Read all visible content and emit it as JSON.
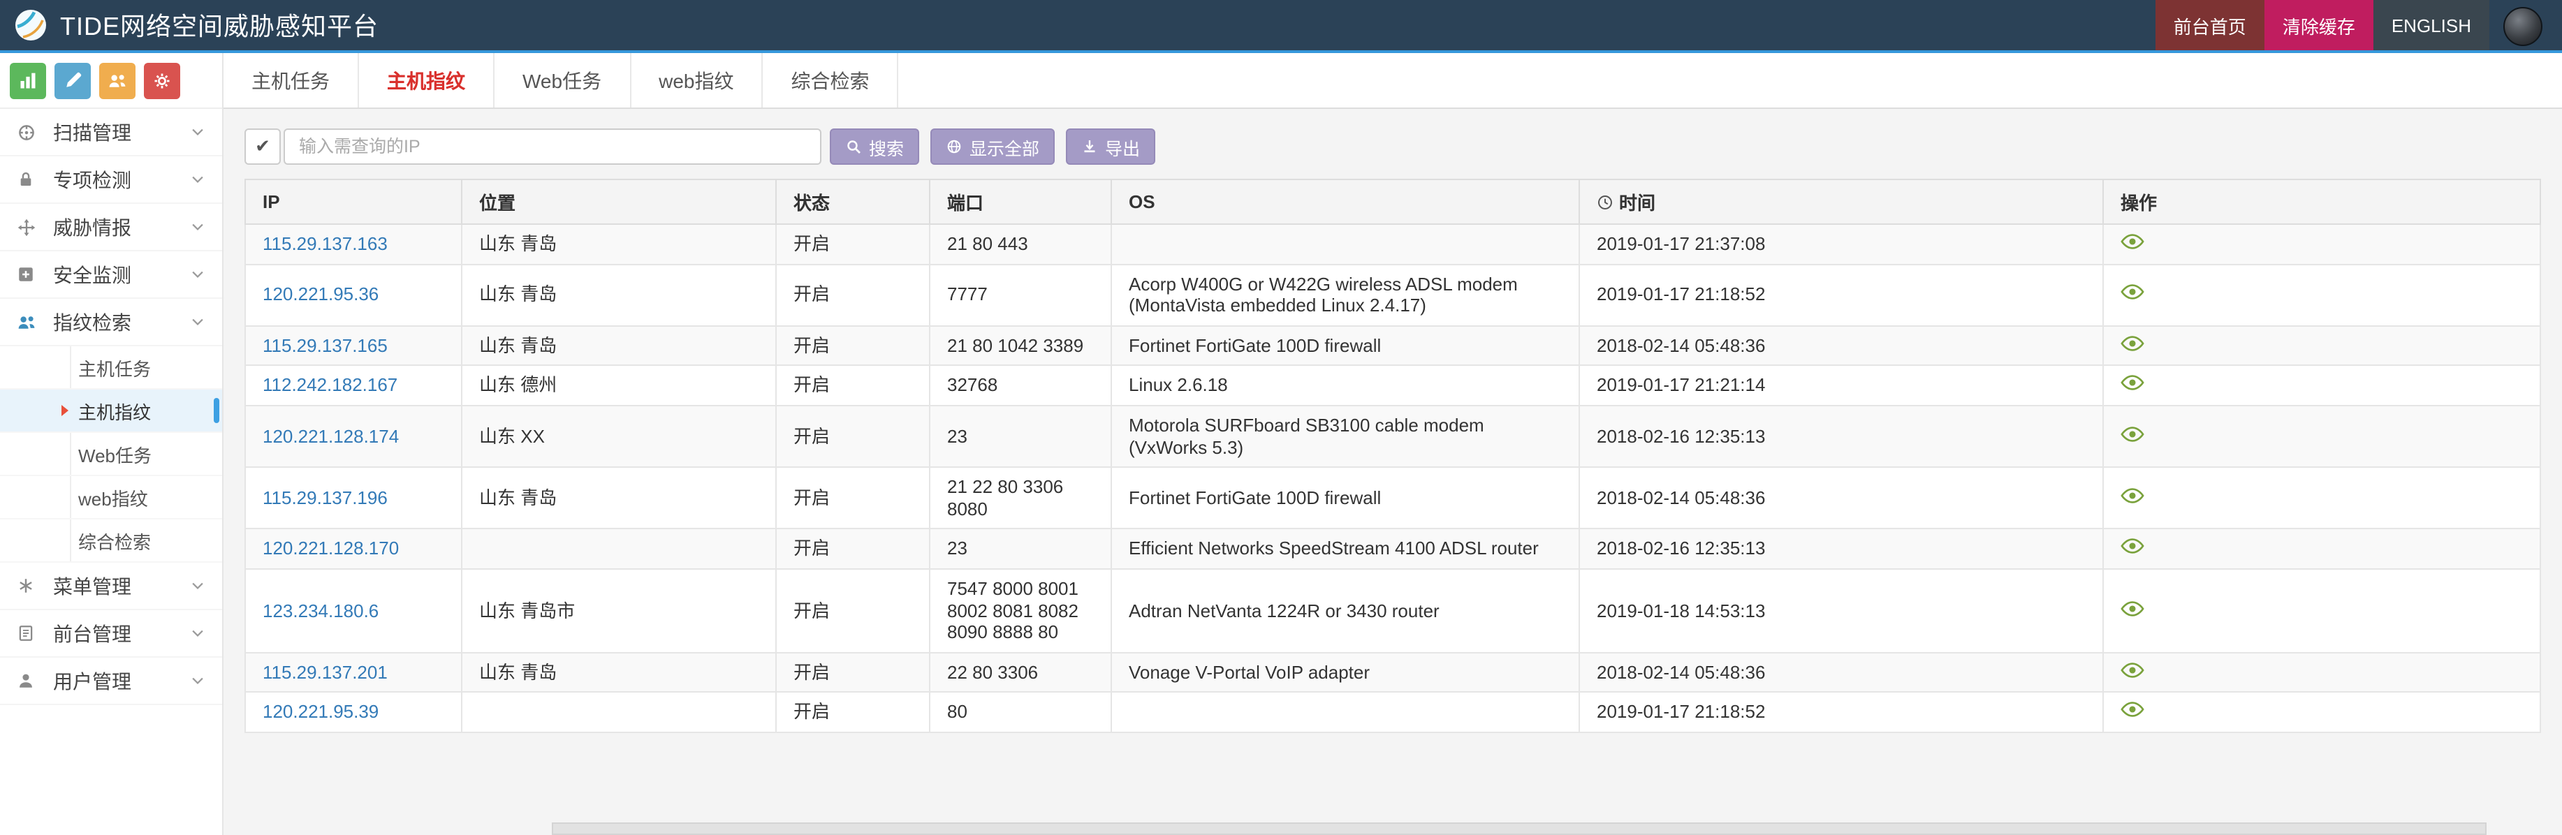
{
  "header": {
    "title": "TIDE网络空间威胁感知平台",
    "actions": [
      {
        "id": "home",
        "label": "前台首页",
        "color": "#7d3333"
      },
      {
        "id": "clear-cache",
        "label": "清除缓存",
        "color": "#c01d5f"
      },
      {
        "id": "english",
        "label": "ENGLISH",
        "color": "#3a464f"
      }
    ]
  },
  "sidebar": {
    "quick_buttons": [
      {
        "icon": "bar-chart",
        "color": "#5cb85c"
      },
      {
        "icon": "pencil",
        "color": "#5ba8d0"
      },
      {
        "icon": "users",
        "color": "#f0ad4e"
      },
      {
        "icon": "gears",
        "color": "#d9534f"
      }
    ],
    "menu": [
      {
        "label": "扫描管理",
        "icon": "scan"
      },
      {
        "label": "专项检测",
        "icon": "lock"
      },
      {
        "label": "威胁情报",
        "icon": "threat"
      },
      {
        "label": "安全监测",
        "icon": "security"
      },
      {
        "label": "指纹检索",
        "icon": "fingerprint",
        "expanded": true,
        "children": [
          {
            "label": "主机任务"
          },
          {
            "label": "主机指纹",
            "active": true
          },
          {
            "label": "Web任务"
          },
          {
            "label": "web指纹"
          },
          {
            "label": "综合检索"
          }
        ]
      },
      {
        "label": "菜单管理",
        "icon": "menu-grid"
      },
      {
        "label": "前台管理",
        "icon": "frontend"
      },
      {
        "label": "用户管理",
        "icon": "user"
      }
    ]
  },
  "tabs": {
    "items": [
      "主机任务",
      "主机指纹",
      "Web任务",
      "web指纹",
      "综合检索"
    ],
    "active": "主机指纹"
  },
  "toolbar": {
    "check_glyph": "✔",
    "search_placeholder": "输入需查询的IP",
    "search_label": "搜索",
    "show_all_label": "显示全部",
    "export_label": "导出"
  },
  "table": {
    "columns": [
      "IP",
      "位置",
      "状态",
      "端口",
      "OS",
      "时间",
      "操作"
    ],
    "rows": [
      {
        "ip": "115.29.137.163",
        "location": "山东 青岛",
        "status": "开启",
        "ports": "21 80 443",
        "os": "",
        "time": "2019-01-17 21:37:08"
      },
      {
        "ip": "120.221.95.36",
        "location": "山东 青岛",
        "status": "开启",
        "ports": "7777",
        "os": "Acorp W400G or W422G wireless ADSL modem (MontaVista embedded Linux 2.4.17)",
        "time": "2019-01-17 21:18:52"
      },
      {
        "ip": "115.29.137.165",
        "location": "山东 青岛",
        "status": "开启",
        "ports": "21 80 1042 3389",
        "os": "Fortinet FortiGate 100D firewall",
        "time": "2018-02-14 05:48:36"
      },
      {
        "ip": "112.242.182.167",
        "location": "山东 德州",
        "status": "开启",
        "ports": "32768",
        "os": "Linux 2.6.18",
        "time": "2019-01-17 21:21:14"
      },
      {
        "ip": "120.221.128.174",
        "location": "山东 XX",
        "status": "开启",
        "ports": "23",
        "os": "Motorola SURFboard SB3100 cable modem (VxWorks 5.3)",
        "time": "2018-02-16 12:35:13"
      },
      {
        "ip": "115.29.137.196",
        "location": "山东 青岛",
        "status": "开启",
        "ports": "21 22 80 3306 8080",
        "os": "Fortinet FortiGate 100D firewall",
        "time": "2018-02-14 05:48:36"
      },
      {
        "ip": "120.221.128.170",
        "location": "",
        "status": "开启",
        "ports": "23",
        "os": "Efficient Networks SpeedStream 4100 ADSL router",
        "time": "2018-02-16 12:35:13"
      },
      {
        "ip": "123.234.180.6",
        "location": "山东 青岛市",
        "status": "开启",
        "ports": "7547 8000 8001 8002 8081 8082 8090 8888 80",
        "os": "Adtran NetVanta 1224R or 3430 router",
        "time": "2019-01-18 14:53:13"
      },
      {
        "ip": "115.29.137.201",
        "location": "山东 青岛",
        "status": "开启",
        "ports": "22 80 3306",
        "os": "Vonage V-Portal VoIP adapter",
        "time": "2018-02-14 05:48:36"
      },
      {
        "ip": "120.221.95.39",
        "location": "",
        "status": "开启",
        "ports": "80",
        "os": "",
        "time": "2019-01-17 21:18:52"
      }
    ]
  },
  "colors": {
    "header_bg": "#2b4257",
    "header_underline": "#3598dc",
    "active_tab": "#d9302c",
    "link": "#337ab7",
    "toolbar_btn": "#a49bc6",
    "toolbar_btn_border": "#958ab8",
    "eye": "#7aa23c",
    "active_item_bg": "#e8f3fb",
    "active_pill": "#3da0e3",
    "fingerprint_icon": "#3c8dbc"
  }
}
